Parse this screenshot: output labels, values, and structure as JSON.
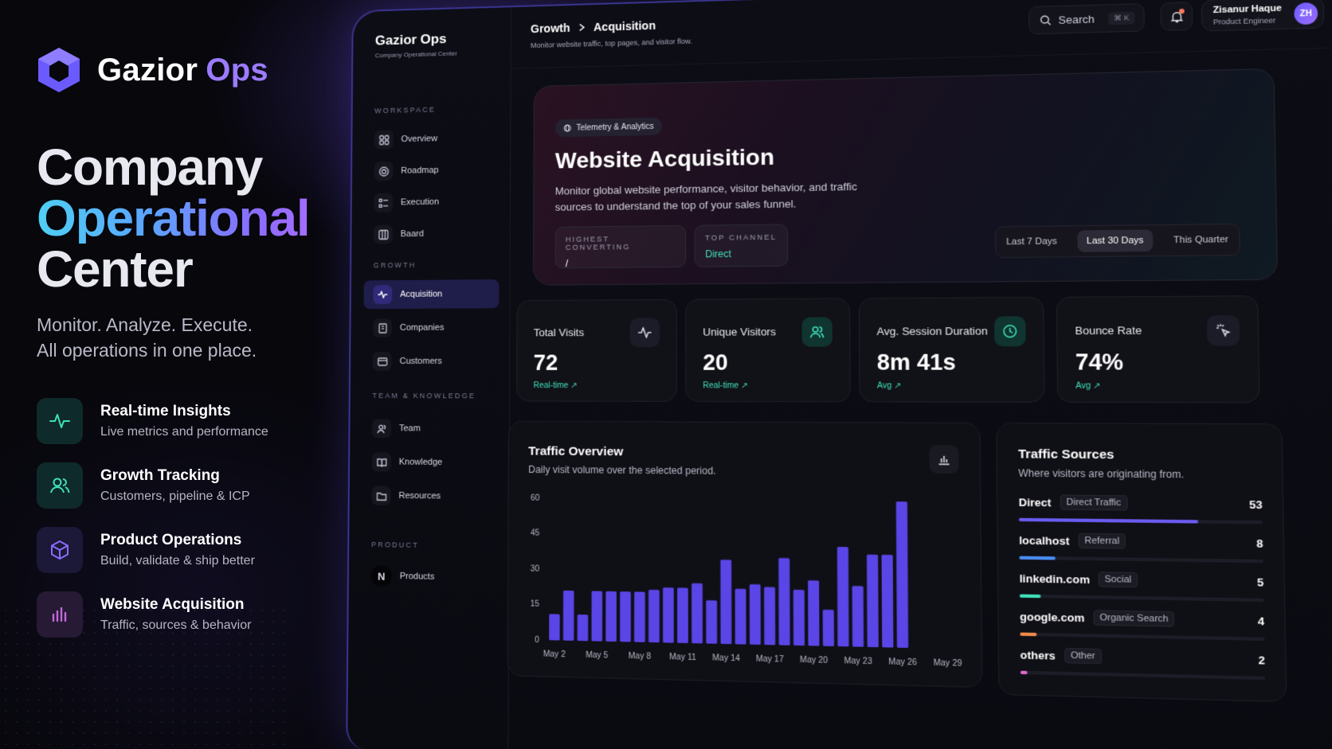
{
  "promo": {
    "brand": {
      "name": "Gazior",
      "accent": "Ops"
    },
    "hero": {
      "line1": "Company",
      "line2": "Operational",
      "line3": "Center"
    },
    "subtitle": {
      "line1": "Monitor. Analyze. Execute.",
      "line2": "All operations in one place."
    },
    "features": [
      {
        "title": "Real-time Insights",
        "desc": "Live metrics and performance",
        "icon": "pulse-icon",
        "color": "#3ee0b8"
      },
      {
        "title": "Growth Tracking",
        "desc": "Customers, pipeline & ICP",
        "icon": "users-icon",
        "color": "#3ee0b8"
      },
      {
        "title": "Product Operations",
        "desc": "Build, validate & ship better",
        "icon": "cube-icon",
        "color": "#8a6cff"
      },
      {
        "title": "Website Acquisition",
        "desc": "Traffic, sources & behavior",
        "icon": "bar-chart-icon",
        "color": "#c267d8"
      }
    ]
  },
  "sidebar": {
    "brand": "Gazior Ops",
    "brand_sub": "Company Operational Center",
    "sections": {
      "workspace": "WORKSPACE",
      "growth": "GROWTH",
      "team": "TEAM & KNOWLEDGE",
      "product": "PRODUCT"
    },
    "workspace": [
      {
        "label": "Overview",
        "icon": "grid-icon"
      },
      {
        "label": "Roadmap",
        "icon": "target-icon"
      },
      {
        "label": "Execution",
        "icon": "list-check-icon"
      },
      {
        "label": "Baard",
        "icon": "board-icon"
      }
    ],
    "growth": [
      {
        "label": "Acquisition",
        "icon": "pulse-icon",
        "active": true
      },
      {
        "label": "Companies",
        "icon": "building-icon"
      },
      {
        "label": "Customers",
        "icon": "contact-card-icon"
      }
    ],
    "team": [
      {
        "label": "Team",
        "icon": "users-icon"
      },
      {
        "label": "Knowledge",
        "icon": "book-icon"
      },
      {
        "label": "Resources",
        "icon": "folder-icon"
      }
    ],
    "product": [
      {
        "label": "Products",
        "icon": "n-logo-icon",
        "glyph": "N"
      }
    ]
  },
  "header": {
    "crumb_parent": "Growth",
    "crumb_current": "Acquisition",
    "crumb_sub": "Monitor website traffic, top pages, and visitor flow.",
    "search": "Search",
    "search_kbd": "⌘ K",
    "user_name": "Zisanur Haque",
    "user_role": "Product Engineer",
    "user_initials": "ZH"
  },
  "hero": {
    "badge": "Telemetry & Analytics",
    "title": "Website Acquisition",
    "desc": "Monitor global website performance, visitor behavior, and traffic sources to understand the top of your sales funnel.",
    "highest_label": "HIGHEST CONVERTING",
    "highest_value": "/",
    "channel_label": "TOP CHANNEL",
    "channel_value": "Direct",
    "ranges": [
      "Last 7 Days",
      "Last 30 Days",
      "This Quarter"
    ],
    "active_range": "Last 30 Days"
  },
  "stats": [
    {
      "label": "Total Visits",
      "value": "72",
      "trend": "Real-time ↗",
      "icon": "pulse-icon",
      "icon_color": "#d8d8e4",
      "icon_bg": "#1c1c28"
    },
    {
      "label": "Unique Visitors",
      "value": "20",
      "trend": "Real-time ↗",
      "icon": "users-icon",
      "icon_color": "#3ee0b8",
      "icon_bg": "#103430"
    },
    {
      "label": "Avg. Session Duration",
      "value": "8m 41s",
      "trend": "Avg ↗",
      "icon": "clock-icon",
      "icon_color": "#3ee0b8",
      "icon_bg": "#103430"
    },
    {
      "label": "Bounce Rate",
      "value": "74%",
      "trend": "Avg ↗",
      "icon": "cursor-click-icon",
      "icon_color": "#d8d8e4",
      "icon_bg": "#1c1c28"
    }
  ],
  "traffic": {
    "title": "Traffic Overview",
    "subtitle": "Daily visit volume over the selected period.",
    "icon": "bar-chart-icon"
  },
  "sources": {
    "title": "Traffic Sources",
    "subtitle": "Where visitors are originating from.",
    "items": [
      {
        "name": "Direct",
        "tag": "Direct Traffic",
        "count": "53",
        "pct": 0.74,
        "color": "#6a5bf0"
      },
      {
        "name": "localhost",
        "tag": "Referral",
        "count": "8",
        "pct": 0.15,
        "color": "#4a8cf0"
      },
      {
        "name": "linkedin.com",
        "tag": "Social",
        "count": "5",
        "pct": 0.09,
        "color": "#3ee0b8"
      },
      {
        "name": "google.com",
        "tag": "Organic Search",
        "count": "4",
        "pct": 0.07,
        "color": "#f08a4a"
      },
      {
        "name": "others",
        "tag": "Other",
        "count": "2",
        "pct": 0.03,
        "color": "#e06ad0"
      }
    ]
  },
  "chart_data": {
    "type": "bar",
    "title": "Traffic Overview",
    "categories": [
      "May 2",
      "May 3",
      "May 4",
      "May 5",
      "May 6",
      "May 7",
      "May 8",
      "May 9",
      "May 10",
      "May 11",
      "May 12",
      "May 13",
      "May 14",
      "May 15",
      "May 16",
      "May 17",
      "May 18",
      "May 19",
      "May 20",
      "May 21",
      "May 22",
      "May 23",
      "May 24",
      "May 25",
      "May 26",
      "May 27",
      "May 28",
      "May 29"
    ],
    "x_tick_labels": [
      "May 2",
      "May 5",
      "May 8",
      "May 11",
      "May 14",
      "May 17",
      "May 20",
      "May 23",
      "May 26",
      "May 29"
    ],
    "values": [
      11,
      21,
      11,
      21,
      21,
      21,
      21,
      22,
      23,
      23,
      25,
      18,
      35,
      23,
      25,
      24,
      36,
      23,
      27,
      15,
      41,
      25,
      38,
      38,
      60,
      0,
      0,
      0
    ],
    "yticks": [
      "0",
      "15",
      "30",
      "45",
      "60"
    ],
    "ylim": [
      0,
      60
    ],
    "grid": false,
    "color": "#5a45e6"
  }
}
